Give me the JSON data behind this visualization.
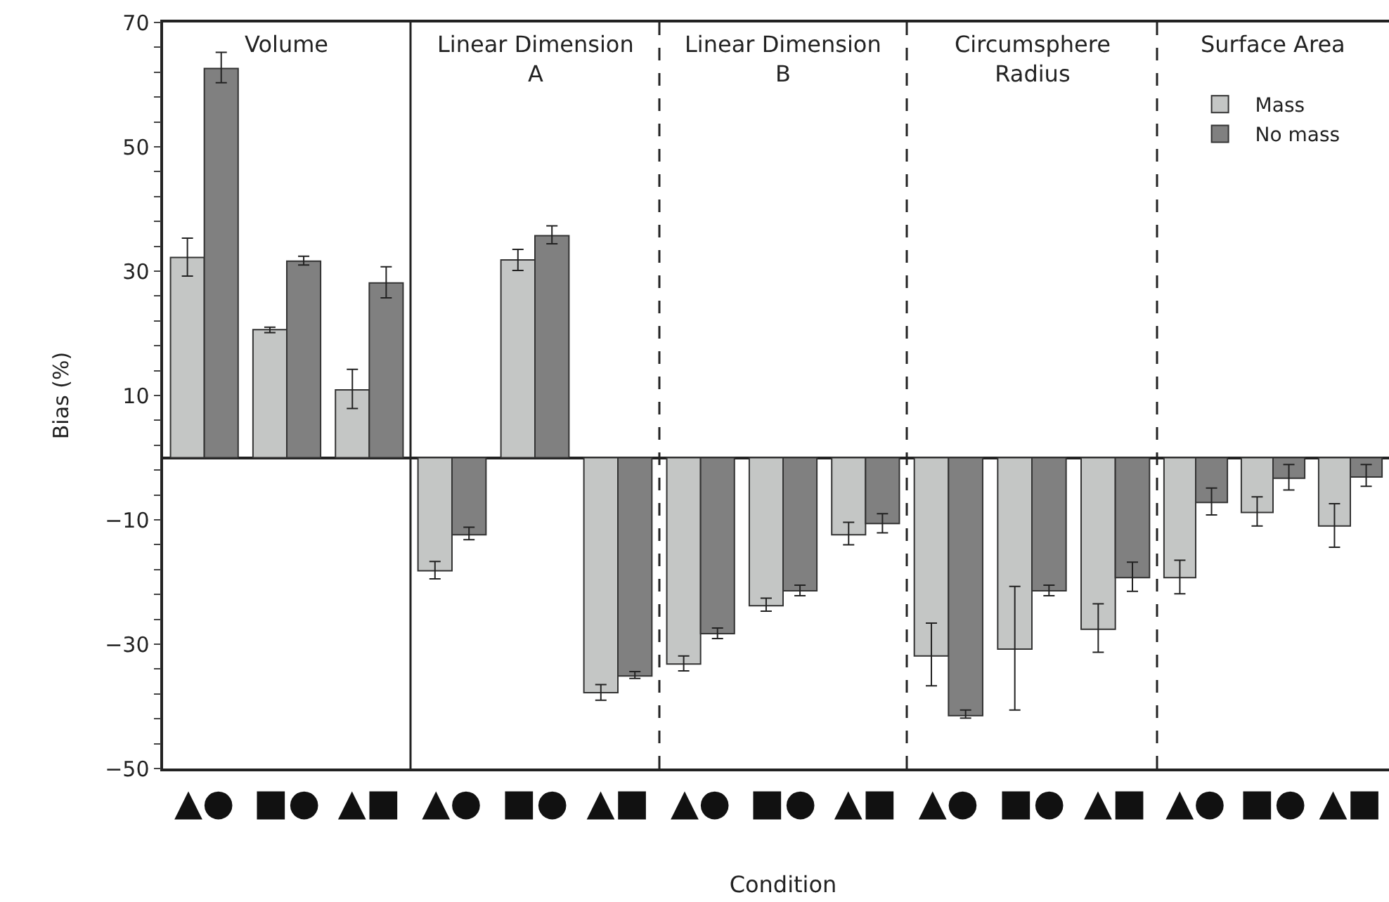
{
  "chart_data": [
    {
      "type": "bar",
      "title": "Volume",
      "ylabel": "Bias (%)",
      "categories": [
        "▲●",
        "■●",
        "▲■"
      ],
      "ylim": [
        -50,
        70
      ],
      "tick_labels": true,
      "yticks": [
        {
          "value": -50,
          "label": "−50"
        },
        {
          "value": -46,
          "label": null
        },
        {
          "value": -42,
          "label": null
        },
        {
          "value": -38,
          "label": null
        },
        {
          "value": -34,
          "label": null
        },
        {
          "value": -30,
          "label": "−30"
        },
        {
          "value": -26,
          "label": null
        },
        {
          "value": -22,
          "label": null
        },
        {
          "value": -18,
          "label": null
        },
        {
          "value": -14,
          "label": null
        },
        {
          "value": -10,
          "label": "−10"
        },
        {
          "value": -6,
          "label": null
        },
        {
          "value": -2,
          "label": null
        },
        {
          "value": 2,
          "label": null
        },
        {
          "value": 6,
          "label": null
        },
        10,
        {
          "value": 14,
          "label": null
        },
        {
          "value": 18,
          "label": null
        },
        {
          "value": 22,
          "label": null
        },
        {
          "value": 26,
          "label": null
        },
        30,
        {
          "value": 34,
          "label": null
        },
        {
          "value": 38,
          "label": null
        },
        {
          "value": 42,
          "label": null
        },
        {
          "value": 46,
          "label": null
        },
        50,
        {
          "value": 54,
          "label": null
        },
        {
          "value": 58,
          "label": null
        },
        {
          "value": 62,
          "label": null
        },
        {
          "value": 66,
          "label": null
        },
        70
      ],
      "series": [
        {
          "color": "#c4c6c5",
          "values": [
            32.2,
            20.6,
            10.9
          ],
          "errors": [
            [
              29.2,
              35.3
            ],
            [
              20.1,
              21.0
            ],
            [
              7.9,
              14.2
            ]
          ]
        },
        {
          "color": "#808080",
          "values": [
            62.6,
            31.6,
            28.1
          ],
          "errors": [
            [
              60.3,
              65.2
            ],
            [
              31.0,
              32.4
            ],
            [
              25.7,
              30.7
            ]
          ]
        }
      ]
    },
    {
      "type": "bar",
      "title": "Linear Dimension\nA",
      "categories": [
        "▲●",
        "■●",
        "▲■"
      ],
      "ylim": [
        -50,
        70
      ],
      "yticks": [
        -50,
        -30,
        -10,
        10,
        30,
        50,
        70
      ],
      "tick_labels": "x",
      "series": [
        {
          "color": "#c4c6c5",
          "values": [
            -18.2,
            31.8,
            -37.8
          ],
          "errors": [
            [
              -19.5,
              -16.7
            ],
            [
              30.1,
              33.5
            ],
            [
              -39.0,
              -36.5
            ]
          ]
        },
        {
          "color": "#808080",
          "values": [
            -12.4,
            35.7,
            -35.1
          ],
          "errors": [
            [
              -13.2,
              -11.2
            ],
            [
              34.4,
              37.3
            ],
            [
              -35.5,
              -34.4
            ]
          ]
        }
      ]
    },
    {
      "type": "bar",
      "title": "Linear Dimension\nB",
      "xlabel": "Condition",
      "categories": [
        "▲●",
        "■●",
        "▲■"
      ],
      "ylim": [
        -50,
        70
      ],
      "yticks": [
        -50,
        -30,
        -10,
        10,
        30,
        50,
        70
      ],
      "tick_labels": "x",
      "series": [
        {
          "color": "#c4c6c5",
          "values": [
            -33.2,
            -23.8,
            -12.4
          ],
          "errors": [
            [
              -34.3,
              -31.9
            ],
            [
              -24.7,
              -22.6
            ],
            [
              -14.0,
              -10.4
            ]
          ]
        },
        {
          "color": "#808080",
          "values": [
            -28.3,
            -21.4,
            -10.6
          ],
          "errors": [
            [
              -29.1,
              -27.4
            ],
            [
              -22.2,
              -20.5
            ],
            [
              -12.1,
              -9.0
            ]
          ]
        }
      ]
    },
    {
      "type": "bar",
      "title": "Circumsphere\nRadius",
      "categories": [
        "▲●",
        "■●",
        "▲■"
      ],
      "ylim": [
        -50,
        70
      ],
      "yticks": [
        -50,
        -30,
        -10,
        10,
        30,
        50,
        70
      ],
      "tick_labels": "x",
      "series": [
        {
          "color": "#c4c6c5",
          "values": [
            -31.9,
            -30.8,
            -27.6
          ],
          "errors": [
            [
              -36.7,
              -26.6
            ],
            [
              -40.6,
              -20.7
            ],
            [
              -31.3,
              -23.5
            ]
          ]
        },
        {
          "color": "#808080",
          "values": [
            -41.5,
            -21.4,
            -19.3
          ],
          "errors": [
            [
              -41.9,
              -40.6
            ],
            [
              -22.2,
              -20.5
            ],
            [
              -21.5,
              -16.8
            ]
          ]
        }
      ]
    },
    {
      "type": "bar",
      "title": "Surface Area",
      "categories": [
        "▲●",
        "■●",
        "▲■"
      ],
      "ylim": [
        -50,
        70
      ],
      "yticks": [
        -50,
        -30,
        -10,
        10,
        30,
        50,
        70
      ],
      "tick_labels": "x",
      "legend": "top right",
      "series": [
        {
          "name": "Mass",
          "color": "#c4c6c5",
          "values": [
            -19.3,
            -8.8,
            -11.0
          ],
          "errors": [
            [
              -21.9,
              -16.5
            ],
            [
              -11.0,
              -6.3
            ],
            [
              -14.4,
              -7.4
            ]
          ]
        },
        {
          "name": "No mass",
          "color": "#808080",
          "values": [
            -7.2,
            -3.3,
            -3.1
          ],
          "errors": [
            [
              -9.2,
              -4.9
            ],
            [
              -5.2,
              -1.1
            ],
            [
              -4.6,
              -1.1
            ]
          ]
        }
      ]
    }
  ]
}
